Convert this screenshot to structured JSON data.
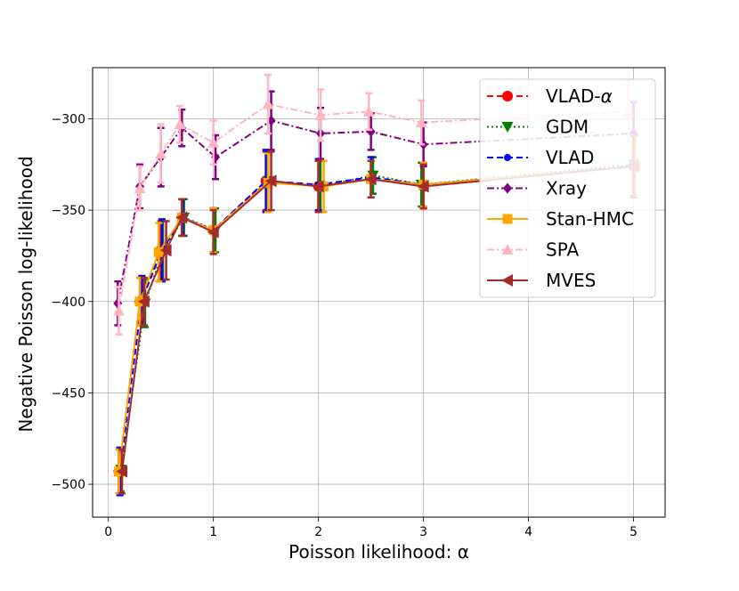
{
  "chart_data": {
    "type": "line",
    "title": "",
    "xlabel": "Poisson likelihood: α",
    "ylabel": "Negative Poisson log-likelihood",
    "xlim": [
      -0.15,
      5.3
    ],
    "ylim": [
      -518,
      -272
    ],
    "xticks": [
      0,
      1,
      2,
      3,
      4,
      5
    ],
    "xtick_labels": [
      "0",
      "1",
      "2",
      "3",
      "4",
      "5"
    ],
    "yticks": [
      -500,
      -450,
      -400,
      -350,
      -300
    ],
    "ytick_labels": [
      "−500",
      "−450",
      "−400",
      "−350",
      "−300"
    ],
    "grid": true,
    "legend_position": "top-right",
    "series": [
      {
        "name": "VLAD-α",
        "label_main": "VLAD-",
        "label_italic": "α",
        "color": "#ff0000",
        "linestyle": "dashed",
        "marker": "circle",
        "x": [
          0.1,
          0.3,
          0.5,
          0.7,
          1.0,
          1.5,
          2.0,
          2.5,
          3.0,
          5.0
        ],
        "y": [
          -493,
          -400,
          -372,
          -354,
          -361,
          -334,
          -337,
          -333,
          -337,
          -326
        ],
        "err": [
          12,
          13,
          16,
          10,
          12,
          16,
          14,
          10,
          12,
          17
        ]
      },
      {
        "name": "GDM",
        "label_main": "GDM",
        "label_italic": "",
        "color": "#008000",
        "linestyle": "dotted",
        "marker": "triangle-down",
        "x": [
          0.12,
          0.35,
          0.52,
          0.72,
          1.02,
          1.52,
          2.02,
          2.52,
          2.98,
          5.0
        ],
        "y": [
          -492,
          -401,
          -372,
          -354,
          -361,
          -334,
          -337,
          -331,
          -336,
          -325
        ],
        "err": [
          12,
          13,
          16,
          10,
          12,
          16,
          14,
          10,
          12,
          17
        ]
      },
      {
        "name": "VLAD",
        "label_main": "VLAD",
        "label_italic": "",
        "color": "#0000ff",
        "linestyle": "dashed",
        "marker": "circle-small",
        "x": [
          0.11,
          0.32,
          0.51,
          0.71,
          1.0,
          1.5,
          2.0,
          2.5,
          3.0,
          5.0
        ],
        "y": [
          -493,
          -399,
          -372,
          -354,
          -361,
          -334,
          -336,
          -332,
          -336,
          -326
        ],
        "err": [
          13,
          13,
          17,
          10,
          12,
          17,
          14,
          11,
          12,
          17
        ]
      },
      {
        "name": "Xray",
        "label_main": "Xray",
        "label_italic": "",
        "color": "#800080",
        "linestyle": "dashdot",
        "marker": "diamond",
        "x": [
          0.09,
          0.3,
          0.5,
          0.7,
          1.02,
          1.55,
          2.02,
          2.5,
          3.0,
          5.0
        ],
        "y": [
          -401,
          -337,
          -321,
          -305,
          -321,
          -301,
          -308,
          -307,
          -314,
          -308
        ],
        "err": [
          12,
          12,
          16,
          10,
          12,
          16,
          14,
          10,
          12,
          17
        ]
      },
      {
        "name": "Stan-HMC",
        "label_main": "Stan-HMC",
        "label_italic": "",
        "color": "#ffa500",
        "linestyle": "solid",
        "marker": "square",
        "x": [
          0.1,
          0.3,
          0.48,
          0.7,
          1.0,
          1.52,
          2.05,
          2.5,
          3.0,
          5.02
        ],
        "y": [
          -493,
          -400,
          -373,
          -354,
          -361,
          -335,
          -337,
          -333,
          -336,
          -326
        ],
        "err": [
          12,
          13,
          16,
          10,
          12,
          16,
          14,
          10,
          12,
          17
        ]
      },
      {
        "name": "SPA",
        "label_main": "SPA",
        "label_italic": "",
        "color": "#ffb6c1",
        "linestyle": "dashdot",
        "marker": "triangle-up",
        "x": [
          0.1,
          0.3,
          0.5,
          0.68,
          1.0,
          1.52,
          2.02,
          2.48,
          2.98,
          4.95
        ],
        "y": [
          -405,
          -338,
          -319,
          -303,
          -313,
          -292,
          -298,
          -296,
          -302,
          -296
        ],
        "err": [
          13,
          12,
          16,
          10,
          12,
          16,
          14,
          10,
          12,
          17
        ]
      },
      {
        "name": "MVES",
        "label_main": "MVES",
        "label_italic": "",
        "color": "#a52a2a",
        "linestyle": "solid",
        "marker": "triangle-left",
        "x": [
          0.13,
          0.34,
          0.55,
          0.7,
          1.0,
          1.55,
          2.0,
          2.5,
          3.0,
          5.0
        ],
        "y": [
          -493,
          -400,
          -372,
          -354,
          -362,
          -334,
          -337,
          -333,
          -337,
          -326
        ],
        "err": [
          12,
          13,
          16,
          10,
          12,
          16,
          14,
          10,
          12,
          17
        ]
      }
    ]
  }
}
